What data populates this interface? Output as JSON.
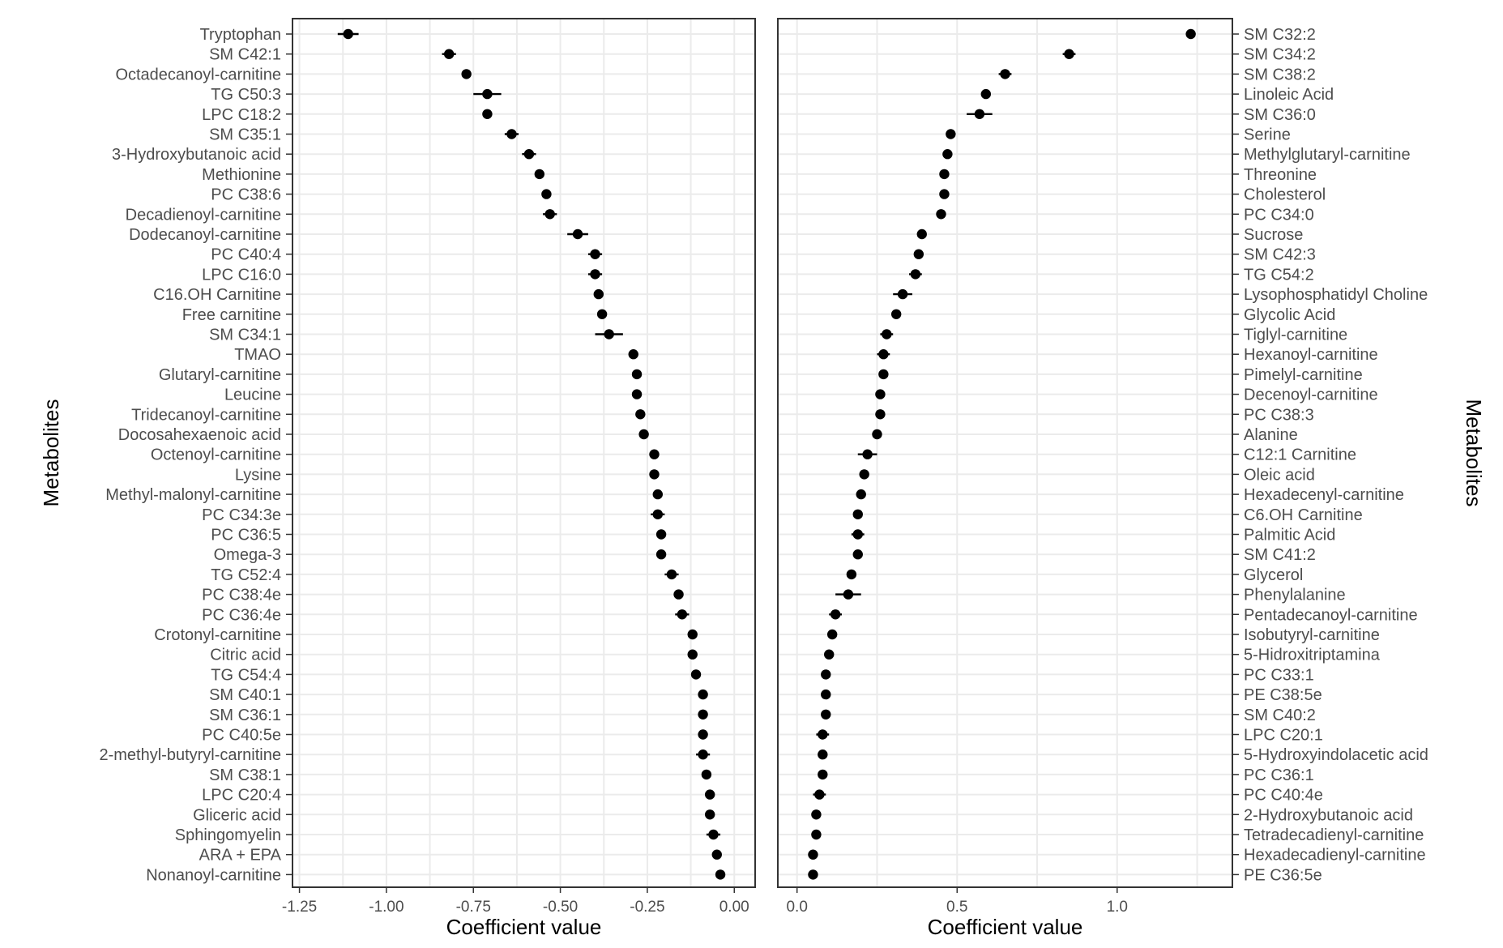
{
  "chart_data": [
    {
      "type": "scatter",
      "subtype": "dot-and-whisker",
      "xlabel": "Coefficient value",
      "ylabel": "Metabolites",
      "ylabel_side": "left",
      "xlim": [
        -1.27,
        0.06
      ],
      "xticks": [
        -1.25,
        -1.0,
        -0.75,
        -0.5,
        -0.25,
        0.0
      ],
      "xtick_labels": [
        "-1.25",
        "-1.00",
        "-0.75",
        "-0.50",
        "-0.25",
        "0.00"
      ],
      "grid": true,
      "metabolites": [
        {
          "name": "Tryptophan",
          "value": -1.11,
          "lo": -1.14,
          "hi": -1.08
        },
        {
          "name": "SM C42:1",
          "value": -0.82,
          "lo": -0.84,
          "hi": -0.8
        },
        {
          "name": "Octadecanoyl-carnitine",
          "value": -0.77,
          "lo": -0.78,
          "hi": -0.76
        },
        {
          "name": "TG C50:3",
          "value": -0.71,
          "lo": -0.75,
          "hi": -0.67
        },
        {
          "name": "LPC C18:2",
          "value": -0.71,
          "lo": -0.72,
          "hi": -0.7
        },
        {
          "name": "SM C35:1",
          "value": -0.64,
          "lo": -0.66,
          "hi": -0.62
        },
        {
          "name": "3-Hydroxybutanoic acid",
          "value": -0.59,
          "lo": -0.61,
          "hi": -0.57
        },
        {
          "name": "Methionine",
          "value": -0.56,
          "lo": -0.57,
          "hi": -0.55
        },
        {
          "name": "PC C38:6",
          "value": -0.54,
          "lo": -0.55,
          "hi": -0.53
        },
        {
          "name": "Decadienoyl-carnitine",
          "value": -0.53,
          "lo": -0.55,
          "hi": -0.51
        },
        {
          "name": "Dodecanoyl-carnitine",
          "value": -0.45,
          "lo": -0.48,
          "hi": -0.42
        },
        {
          "name": "PC C40:4",
          "value": -0.4,
          "lo": -0.42,
          "hi": -0.38
        },
        {
          "name": "LPC C16:0",
          "value": -0.4,
          "lo": -0.42,
          "hi": -0.38
        },
        {
          "name": "C16.OH Carnitine",
          "value": -0.39,
          "lo": -0.4,
          "hi": -0.38
        },
        {
          "name": "Free carnitine",
          "value": -0.38,
          "lo": -0.39,
          "hi": -0.37
        },
        {
          "name": "SM C34:1",
          "value": -0.36,
          "lo": -0.4,
          "hi": -0.32
        },
        {
          "name": "TMAO",
          "value": -0.29,
          "lo": -0.3,
          "hi": -0.28
        },
        {
          "name": "Glutaryl-carnitine",
          "value": -0.28,
          "lo": -0.29,
          "hi": -0.27
        },
        {
          "name": "Leucine",
          "value": -0.28,
          "lo": -0.29,
          "hi": -0.27
        },
        {
          "name": "Tridecanoyl-carnitine",
          "value": -0.27,
          "lo": -0.28,
          "hi": -0.26
        },
        {
          "name": "Docosahexaenoic acid",
          "value": -0.26,
          "lo": -0.27,
          "hi": -0.25
        },
        {
          "name": "Octenoyl-carnitine",
          "value": -0.23,
          "lo": -0.24,
          "hi": -0.22
        },
        {
          "name": "Lysine",
          "value": -0.23,
          "lo": -0.24,
          "hi": -0.22
        },
        {
          "name": "Methyl-malonyl-carnitine",
          "value": -0.22,
          "lo": -0.23,
          "hi": -0.21
        },
        {
          "name": "PC C34:3e",
          "value": -0.22,
          "lo": -0.24,
          "hi": -0.2
        },
        {
          "name": "PC C36:5",
          "value": -0.21,
          "lo": -0.22,
          "hi": -0.2
        },
        {
          "name": "Omega-3",
          "value": -0.21,
          "lo": -0.22,
          "hi": -0.2
        },
        {
          "name": "TG C52:4",
          "value": -0.18,
          "lo": -0.2,
          "hi": -0.16
        },
        {
          "name": "PC C38:4e",
          "value": -0.16,
          "lo": -0.17,
          "hi": -0.15
        },
        {
          "name": "PC C36:4e",
          "value": -0.15,
          "lo": -0.17,
          "hi": -0.13
        },
        {
          "name": "Crotonyl-carnitine",
          "value": -0.12,
          "lo": -0.13,
          "hi": -0.11
        },
        {
          "name": "Citric acid",
          "value": -0.12,
          "lo": -0.13,
          "hi": -0.11
        },
        {
          "name": "TG C54:4",
          "value": -0.11,
          "lo": -0.12,
          "hi": -0.1
        },
        {
          "name": "SM C40:1",
          "value": -0.09,
          "lo": -0.1,
          "hi": -0.08
        },
        {
          "name": "SM C36:1",
          "value": -0.09,
          "lo": -0.1,
          "hi": -0.08
        },
        {
          "name": "PC C40:5e",
          "value": -0.09,
          "lo": -0.1,
          "hi": -0.08
        },
        {
          "name": "2-methyl-butyryl-carnitine",
          "value": -0.09,
          "lo": -0.11,
          "hi": -0.07
        },
        {
          "name": "SM C38:1",
          "value": -0.08,
          "lo": -0.09,
          "hi": -0.07
        },
        {
          "name": "LPC C20:4",
          "value": -0.07,
          "lo": -0.08,
          "hi": -0.06
        },
        {
          "name": "Gliceric acid",
          "value": -0.07,
          "lo": -0.08,
          "hi": -0.06
        },
        {
          "name": "Sphingomyelin",
          "value": -0.06,
          "lo": -0.08,
          "hi": -0.04
        },
        {
          "name": "ARA + EPA",
          "value": -0.05,
          "lo": -0.06,
          "hi": -0.04
        },
        {
          "name": "Nonanoyl-carnitine",
          "value": -0.04,
          "lo": -0.05,
          "hi": -0.03
        }
      ]
    },
    {
      "type": "scatter",
      "subtype": "dot-and-whisker",
      "xlabel": "Coefficient value",
      "ylabel": "Metabolites",
      "ylabel_side": "right",
      "xlim": [
        -0.06,
        1.36
      ],
      "xticks": [
        0.0,
        0.5,
        1.0
      ],
      "xtick_labels": [
        "0.0",
        "0.5",
        "1.0"
      ],
      "grid": true,
      "metabolites": [
        {
          "name": "SM C32:2",
          "value": 1.23,
          "lo": 1.22,
          "hi": 1.24
        },
        {
          "name": "SM C34:2",
          "value": 0.85,
          "lo": 0.83,
          "hi": 0.87
        },
        {
          "name": "SM C38:2",
          "value": 0.65,
          "lo": 0.63,
          "hi": 0.67
        },
        {
          "name": "Linoleic Acid",
          "value": 0.59,
          "lo": 0.58,
          "hi": 0.6
        },
        {
          "name": "SM C36:0",
          "value": 0.57,
          "lo": 0.53,
          "hi": 0.61
        },
        {
          "name": "Serine",
          "value": 0.48,
          "lo": 0.47,
          "hi": 0.49
        },
        {
          "name": "Methylglutaryl-carnitine",
          "value": 0.47,
          "lo": 0.46,
          "hi": 0.48
        },
        {
          "name": "Threonine",
          "value": 0.46,
          "lo": 0.45,
          "hi": 0.47
        },
        {
          "name": "Cholesterol",
          "value": 0.46,
          "lo": 0.45,
          "hi": 0.47
        },
        {
          "name": "PC C34:0",
          "value": 0.45,
          "lo": 0.44,
          "hi": 0.46
        },
        {
          "name": "Sucrose",
          "value": 0.39,
          "lo": 0.38,
          "hi": 0.4
        },
        {
          "name": "SM C42:3",
          "value": 0.38,
          "lo": 0.37,
          "hi": 0.39
        },
        {
          "name": "TG C54:2",
          "value": 0.37,
          "lo": 0.35,
          "hi": 0.39
        },
        {
          "name": "Lysophosphatidyl Choline",
          "value": 0.33,
          "lo": 0.3,
          "hi": 0.36
        },
        {
          "name": "Glycolic Acid",
          "value": 0.31,
          "lo": 0.3,
          "hi": 0.32
        },
        {
          "name": "Tiglyl-carnitine",
          "value": 0.28,
          "lo": 0.26,
          "hi": 0.3
        },
        {
          "name": "Hexanoyl-carnitine",
          "value": 0.27,
          "lo": 0.25,
          "hi": 0.29
        },
        {
          "name": "Pimelyl-carnitine",
          "value": 0.27,
          "lo": 0.26,
          "hi": 0.28
        },
        {
          "name": "Decenoyl-carnitine",
          "value": 0.26,
          "lo": 0.25,
          "hi": 0.27
        },
        {
          "name": "PC C38:3",
          "value": 0.26,
          "lo": 0.25,
          "hi": 0.27
        },
        {
          "name": "Alanine",
          "value": 0.25,
          "lo": 0.24,
          "hi": 0.26
        },
        {
          "name": "C12:1 Carnitine",
          "value": 0.22,
          "lo": 0.19,
          "hi": 0.25
        },
        {
          "name": "Oleic acid",
          "value": 0.21,
          "lo": 0.2,
          "hi": 0.22
        },
        {
          "name": "Hexadecenyl-carnitine",
          "value": 0.2,
          "lo": 0.19,
          "hi": 0.21
        },
        {
          "name": "C6.OH Carnitine",
          "value": 0.19,
          "lo": 0.18,
          "hi": 0.2
        },
        {
          "name": "Palmitic Acid",
          "value": 0.19,
          "lo": 0.17,
          "hi": 0.21
        },
        {
          "name": "SM C41:2",
          "value": 0.19,
          "lo": 0.18,
          "hi": 0.2
        },
        {
          "name": "Glycerol",
          "value": 0.17,
          "lo": 0.16,
          "hi": 0.18
        },
        {
          "name": "Phenylalanine",
          "value": 0.16,
          "lo": 0.12,
          "hi": 0.2
        },
        {
          "name": "Pentadecanoyl-carnitine",
          "value": 0.12,
          "lo": 0.1,
          "hi": 0.14
        },
        {
          "name": "Isobutyryl-carnitine",
          "value": 0.11,
          "lo": 0.1,
          "hi": 0.12
        },
        {
          "name": "5-Hidroxitriptamina",
          "value": 0.1,
          "lo": 0.09,
          "hi": 0.11
        },
        {
          "name": "PC C33:1",
          "value": 0.09,
          "lo": 0.08,
          "hi": 0.1
        },
        {
          "name": "PE C38:5e",
          "value": 0.09,
          "lo": 0.08,
          "hi": 0.1
        },
        {
          "name": "SM C40:2",
          "value": 0.09,
          "lo": 0.08,
          "hi": 0.1
        },
        {
          "name": "LPC C20:1",
          "value": 0.08,
          "lo": 0.06,
          "hi": 0.1
        },
        {
          "name": "5-Hydroxyindolacetic acid",
          "value": 0.08,
          "lo": 0.07,
          "hi": 0.09
        },
        {
          "name": "PC C36:1",
          "value": 0.08,
          "lo": 0.07,
          "hi": 0.09
        },
        {
          "name": "PC C40:4e",
          "value": 0.07,
          "lo": 0.05,
          "hi": 0.09
        },
        {
          "name": "2-Hydroxybutanoic acid",
          "value": 0.06,
          "lo": 0.05,
          "hi": 0.07
        },
        {
          "name": "Tetradecadienyl-carnitine",
          "value": 0.06,
          "lo": 0.05,
          "hi": 0.07
        },
        {
          "name": "Hexadecadienyl-carnitine",
          "value": 0.05,
          "lo": 0.04,
          "hi": 0.06
        },
        {
          "name": "PE C36:5e",
          "value": 0.05,
          "lo": 0.04,
          "hi": 0.06
        }
      ]
    }
  ]
}
